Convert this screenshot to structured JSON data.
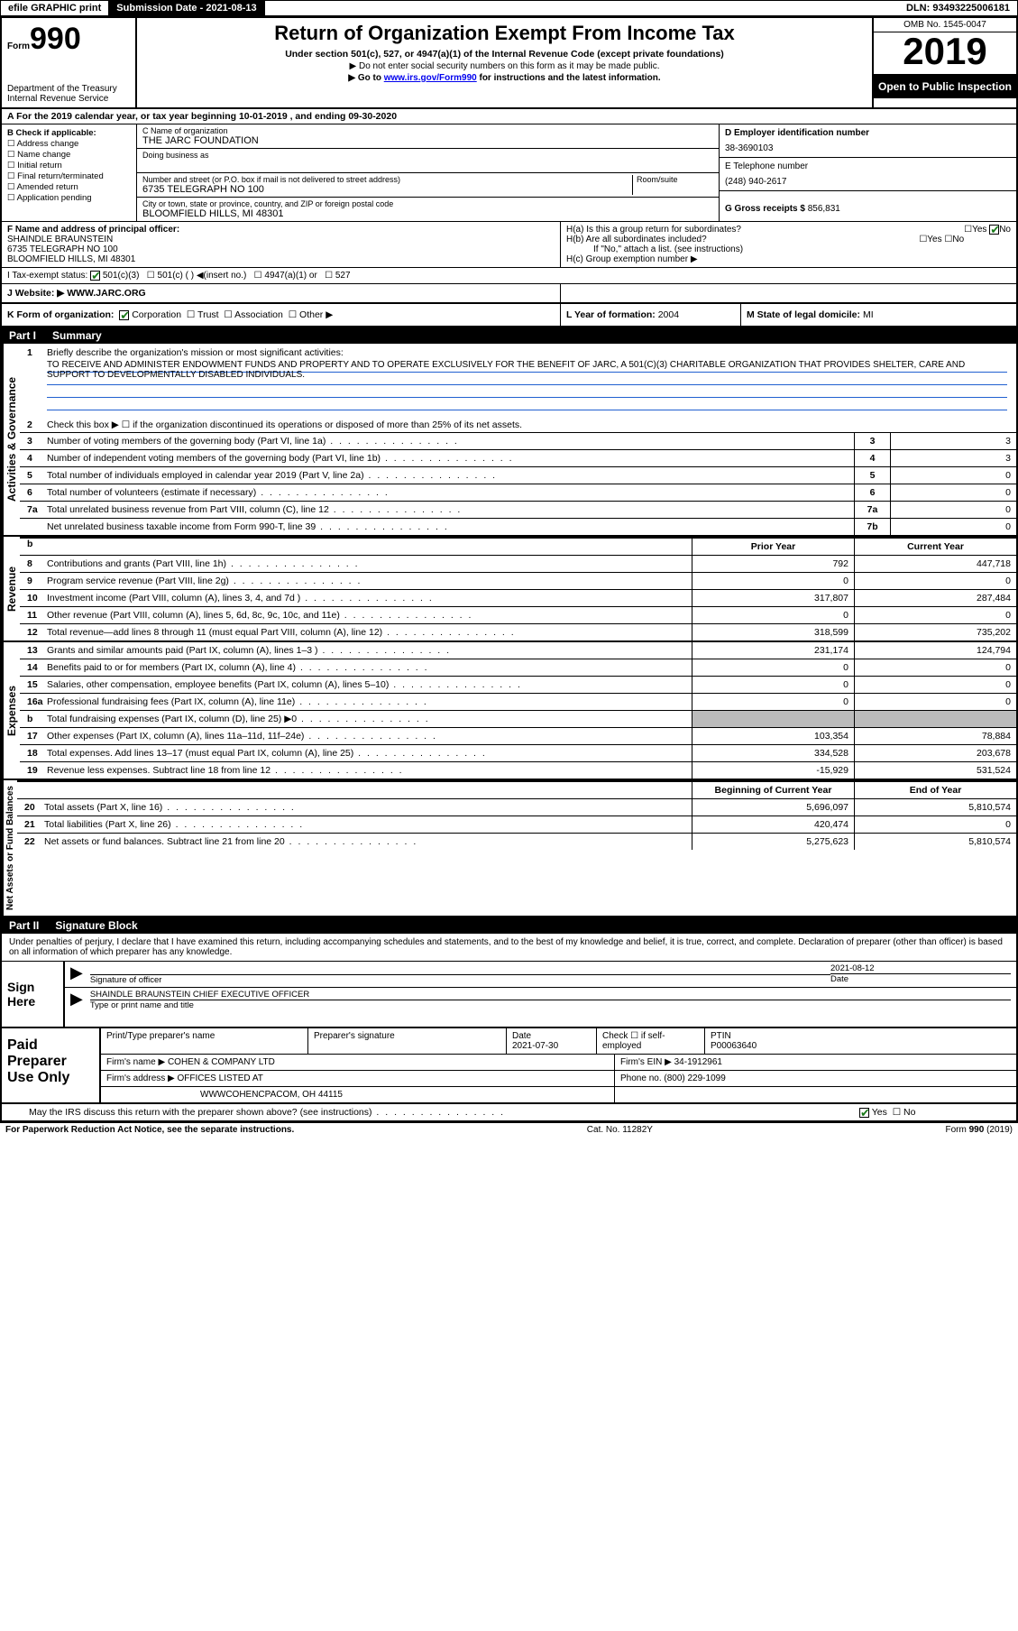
{
  "topbar": {
    "efile": "efile GRAPHIC print",
    "subdate_label": "Submission Date - ",
    "subdate": "2021-08-13",
    "dln": "DLN: 93493225006181"
  },
  "header": {
    "form_label": "Form",
    "form_num": "990",
    "dept": "Department of the Treasury\nInternal Revenue Service",
    "title": "Return of Organization Exempt From Income Tax",
    "subtitle": "Under section 501(c), 527, or 4947(a)(1) of the Internal Revenue Code (except private foundations)",
    "note1": "▶ Do not enter social security numbers on this form as it may be made public.",
    "note2_pre": "▶ Go to ",
    "note2_link": "www.irs.gov/Form990",
    "note2_post": " for instructions and the latest information.",
    "omb": "OMB No. 1545-0047",
    "year": "2019",
    "open": "Open to Public Inspection"
  },
  "row_a": "A For the 2019 calendar year, or tax year beginning 10-01-2019    , and ending 09-30-2020",
  "col_b": {
    "title": "B Check if applicable:",
    "items": [
      "Address change",
      "Name change",
      "Initial return",
      "Final return/terminated",
      "Amended return",
      "Application pending"
    ]
  },
  "col_c": {
    "name_lbl": "C Name of organization",
    "name": "THE JARC FOUNDATION",
    "dba_lbl": "Doing business as",
    "addr_lbl": "Number and street (or P.O. box if mail is not delivered to street address)",
    "room_lbl": "Room/suite",
    "addr": "6735 TELEGRAPH NO 100",
    "city_lbl": "City or town, state or province, country, and ZIP or foreign postal code",
    "city": "BLOOMFIELD HILLS, MI  48301"
  },
  "col_d": {
    "ein_lbl": "D Employer identification number",
    "ein": "38-3690103",
    "phone_lbl": "E Telephone number",
    "phone": "(248) 940-2617",
    "gross_lbl": "G Gross receipts $ ",
    "gross": "856,831"
  },
  "row_f": {
    "lbl": "F  Name and address of principal officer:",
    "name": "SHAINDLE BRAUNSTEIN",
    "addr1": "6735 TELEGRAPH NO 100",
    "addr2": "BLOOMFIELD HILLS, MI  48301"
  },
  "row_h": {
    "ha": "H(a)  Is this a group return for subordinates?",
    "hb": "H(b)  Are all subordinates included?",
    "hb_note": "If \"No,\" attach a list. (see instructions)",
    "hc": "H(c)  Group exemption number ▶"
  },
  "row_i": {
    "lbl": "I   Tax-exempt status:",
    "opts": [
      "501(c)(3)",
      "501(c) (  ) ◀(insert no.)",
      "4947(a)(1) or",
      "527"
    ]
  },
  "row_j": {
    "lbl": "J   Website: ▶  ",
    "val": "WWW.JARC.ORG"
  },
  "row_k": {
    "lbl": "K Form of organization:",
    "opts": [
      "Corporation",
      "Trust",
      "Association",
      "Other ▶"
    ],
    "l_lbl": "L Year of formation: ",
    "l_val": "2004",
    "m_lbl": "M State of legal domicile: ",
    "m_val": "MI"
  },
  "part1": {
    "hdr": "Part I",
    "title": "Summary",
    "q1": "Briefly describe the organization's mission or most significant activities:",
    "mission": "TO RECEIVE AND ADMINISTER ENDOWMENT FUNDS AND PROPERTY AND TO OPERATE EXCLUSIVELY FOR THE BENEFIT OF JARC, A 501(C)(3) CHARITABLE ORGANIZATION THAT PROVIDES SHELTER, CARE AND SUPPORT TO DEVELOPMENTALLY DISABLED INDIVIDUALS.",
    "q2": "Check this box ▶ ☐  if the organization discontinued its operations or disposed of more than 25% of its net assets.",
    "rows": [
      {
        "n": "3",
        "t": "Number of voting members of the governing body (Part VI, line 1a)",
        "box": "3",
        "v": "3"
      },
      {
        "n": "4",
        "t": "Number of independent voting members of the governing body (Part VI, line 1b)",
        "box": "4",
        "v": "3"
      },
      {
        "n": "5",
        "t": "Total number of individuals employed in calendar year 2019 (Part V, line 2a)",
        "box": "5",
        "v": "0"
      },
      {
        "n": "6",
        "t": "Total number of volunteers (estimate if necessary)",
        "box": "6",
        "v": "0"
      },
      {
        "n": "7a",
        "t": "Total unrelated business revenue from Part VIII, column (C), line 12",
        "box": "7a",
        "v": "0"
      },
      {
        "n": "",
        "t": "Net unrelated business taxable income from Form 990-T, line 39",
        "box": "7b",
        "v": "0"
      }
    ],
    "tab": "Activities & Governance"
  },
  "money_hdr": {
    "prior": "Prior Year",
    "curr": "Current Year"
  },
  "revenue": {
    "tab": "Revenue",
    "rows": [
      {
        "n": "8",
        "t": "Contributions and grants (Part VIII, line 1h)",
        "p": "792",
        "c": "447,718"
      },
      {
        "n": "9",
        "t": "Program service revenue (Part VIII, line 2g)",
        "p": "0",
        "c": "0"
      },
      {
        "n": "10",
        "t": "Investment income (Part VIII, column (A), lines 3, 4, and 7d )",
        "p": "317,807",
        "c": "287,484"
      },
      {
        "n": "11",
        "t": "Other revenue (Part VIII, column (A), lines 5, 6d, 8c, 9c, 10c, and 11e)",
        "p": "0",
        "c": "0"
      },
      {
        "n": "12",
        "t": "Total revenue—add lines 8 through 11 (must equal Part VIII, column (A), line 12)",
        "p": "318,599",
        "c": "735,202"
      }
    ]
  },
  "expenses": {
    "tab": "Expenses",
    "rows": [
      {
        "n": "13",
        "t": "Grants and similar amounts paid (Part IX, column (A), lines 1–3 )",
        "p": "231,174",
        "c": "124,794"
      },
      {
        "n": "14",
        "t": "Benefits paid to or for members (Part IX, column (A), line 4)",
        "p": "0",
        "c": "0"
      },
      {
        "n": "15",
        "t": "Salaries, other compensation, employee benefits (Part IX, column (A), lines 5–10)",
        "p": "0",
        "c": "0"
      },
      {
        "n": "16a",
        "t": "Professional fundraising fees (Part IX, column (A), line 11e)",
        "p": "0",
        "c": "0"
      },
      {
        "n": "b",
        "t": "Total fundraising expenses (Part IX, column (D), line 25) ▶0",
        "p": "shade",
        "c": "shade"
      },
      {
        "n": "17",
        "t": "Other expenses (Part IX, column (A), lines 11a–11d, 11f–24e)",
        "p": "103,354",
        "c": "78,884"
      },
      {
        "n": "18",
        "t": "Total expenses. Add lines 13–17 (must equal Part IX, column (A), line 25)",
        "p": "334,528",
        "c": "203,678"
      },
      {
        "n": "19",
        "t": "Revenue less expenses. Subtract line 18 from line 12",
        "p": "-15,929",
        "c": "531,524"
      }
    ]
  },
  "netassets": {
    "tab": "Net Assets or Fund Balances",
    "hdr": {
      "b": "Beginning of Current Year",
      "e": "End of Year"
    },
    "rows": [
      {
        "n": "20",
        "t": "Total assets (Part X, line 16)",
        "p": "5,696,097",
        "c": "5,810,574"
      },
      {
        "n": "21",
        "t": "Total liabilities (Part X, line 26)",
        "p": "420,474",
        "c": "0"
      },
      {
        "n": "22",
        "t": "Net assets or fund balances. Subtract line 21 from line 20",
        "p": "5,275,623",
        "c": "5,810,574"
      }
    ]
  },
  "part2": {
    "hdr": "Part II",
    "title": "Signature Block"
  },
  "sig_intro": "Under penalties of perjury, I declare that I have examined this return, including accompanying schedules and statements, and to the best of my knowledge and belief, it is true, correct, and complete. Declaration of preparer (other than officer) is based on all information of which preparer has any knowledge.",
  "sign": {
    "lab": "Sign Here",
    "sig_lbl": "Signature of officer",
    "date": "2021-08-12",
    "date_lbl": "Date",
    "name": "SHAINDLE BRAUNSTEIN  CHIEF EXECUTIVE OFFICER",
    "name_lbl": "Type or print name and title"
  },
  "prep": {
    "lab": "Paid Preparer Use Only",
    "r1": {
      "a": "Print/Type preparer's name",
      "b": "Preparer's signature",
      "c": "Date",
      "cv": "2021-07-30",
      "d": "Check ☐ if self-employed",
      "e": "PTIN",
      "ev": "P00063640"
    },
    "r2": {
      "a": "Firm's name      ▶",
      "av": "COHEN & COMPANY LTD",
      "b": "Firm's EIN ▶",
      "bv": "34-1912961"
    },
    "r3": {
      "a": "Firm's address ▶",
      "av": "OFFICES LISTED AT",
      "b": "Phone no. ",
      "bv": "(800) 229-1099"
    },
    "r4": "WWWCOHENCPACOM, OH  44115"
  },
  "discuss": "May the IRS discuss this return with the preparer shown above? (see instructions)",
  "footer": {
    "l": "For Paperwork Reduction Act Notice, see the separate instructions.",
    "m": "Cat. No. 11282Y",
    "r": "Form 990 (2019)"
  }
}
